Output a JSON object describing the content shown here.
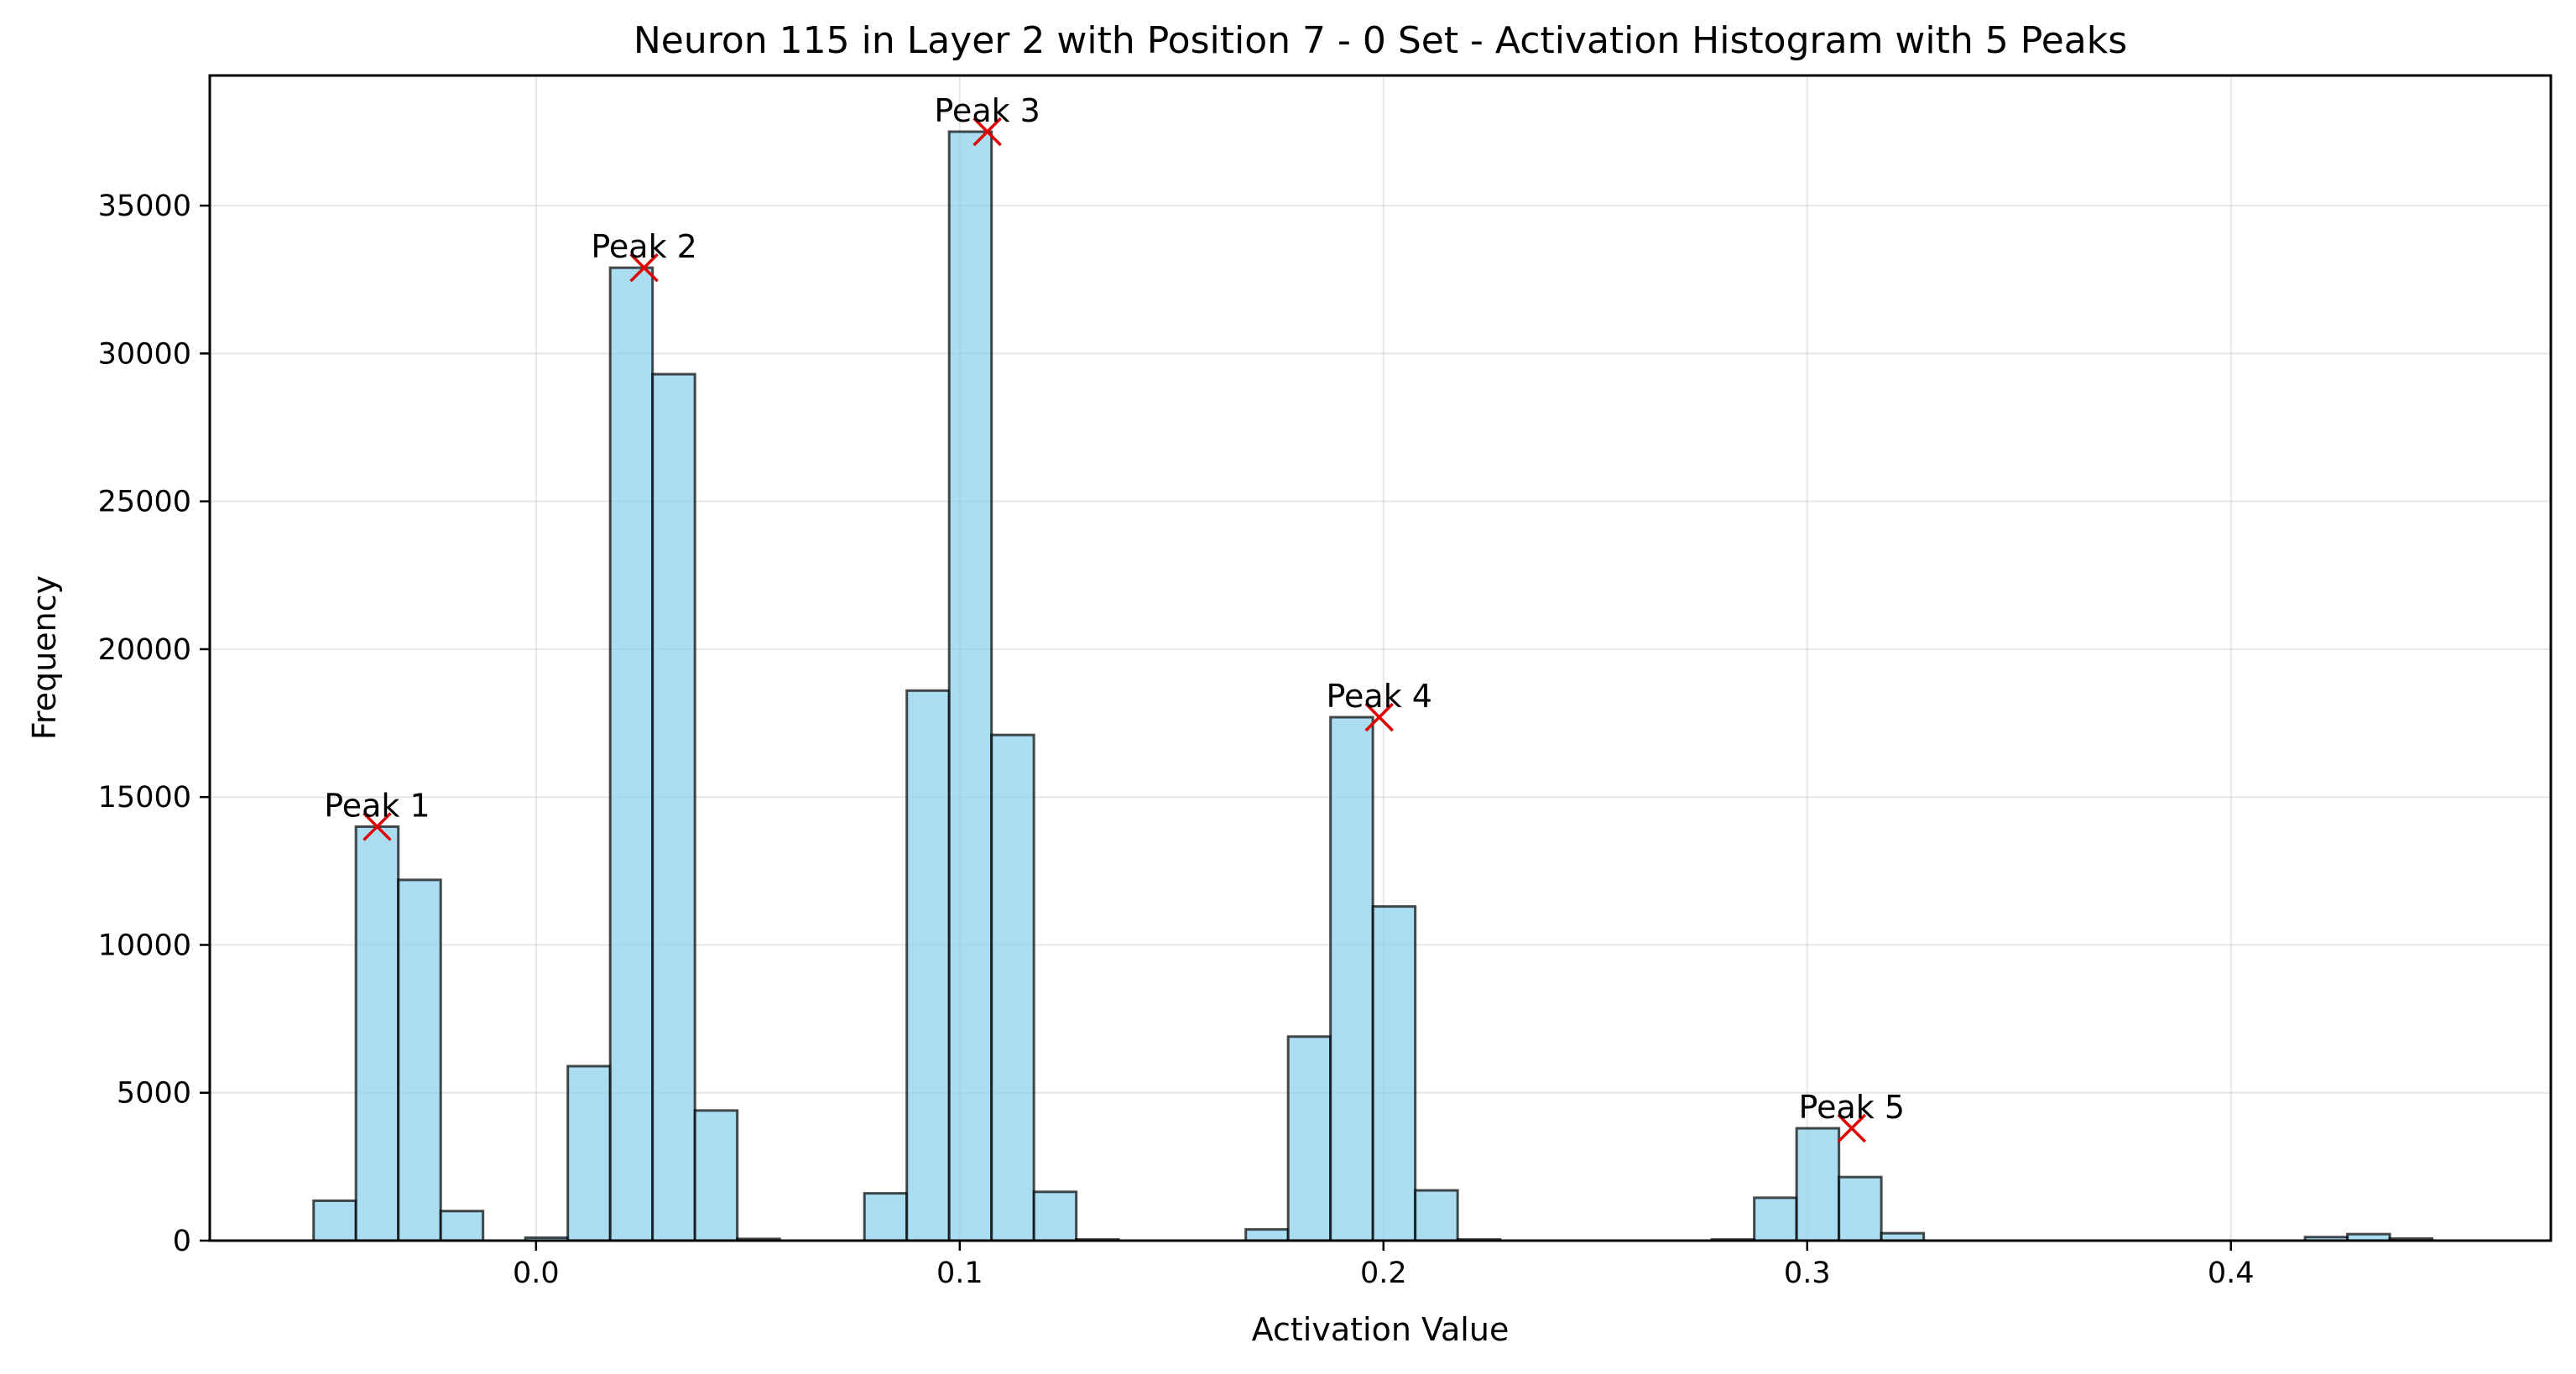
{
  "chart_data": {
    "type": "bar",
    "title": "Neuron 115 in Layer 2 with Position 7 - 0 Set - Activation Histogram with 5 Peaks",
    "xlabel": "Activation Value",
    "ylabel": "Frequency",
    "xlim": [
      -0.077,
      0.4755
    ],
    "ylim": [
      0,
      39400
    ],
    "xticks": [
      0.0,
      0.1,
      0.2,
      0.3,
      0.4
    ],
    "xtick_labels": [
      "0.0",
      "0.1",
      "0.2",
      "0.3",
      "0.4"
    ],
    "yticks": [
      0,
      5000,
      10000,
      15000,
      20000,
      25000,
      30000,
      35000
    ],
    "ytick_labels": [
      "0",
      "5000",
      "10000",
      "15000",
      "20000",
      "25000",
      "30000",
      "35000"
    ],
    "grid": true,
    "bar_color": "#87CEEB",
    "edge_color": "#000000",
    "peak_color": "#e00000",
    "bin_width": 0.01,
    "bins": [
      {
        "x0": -0.0525,
        "count": 1350
      },
      {
        "x0": -0.0425,
        "count": 14000
      },
      {
        "x0": -0.0325,
        "count": 12200
      },
      {
        "x0": -0.0225,
        "count": 1000
      },
      {
        "x0": -0.0025,
        "count": 100
      },
      {
        "x0": 0.0075,
        "count": 5900
      },
      {
        "x0": 0.0175,
        "count": 32900
      },
      {
        "x0": 0.0275,
        "count": 29300
      },
      {
        "x0": 0.0375,
        "count": 4400
      },
      {
        "x0": 0.0475,
        "count": 60
      },
      {
        "x0": 0.0775,
        "count": 1600
      },
      {
        "x0": 0.0875,
        "count": 18600
      },
      {
        "x0": 0.0975,
        "count": 37500
      },
      {
        "x0": 0.1075,
        "count": 17100
      },
      {
        "x0": 0.1175,
        "count": 1650
      },
      {
        "x0": 0.1275,
        "count": 40
      },
      {
        "x0": 0.1675,
        "count": 380
      },
      {
        "x0": 0.1775,
        "count": 6900
      },
      {
        "x0": 0.1875,
        "count": 17700
      },
      {
        "x0": 0.1975,
        "count": 11300
      },
      {
        "x0": 0.2075,
        "count": 1700
      },
      {
        "x0": 0.2175,
        "count": 40
      },
      {
        "x0": 0.2775,
        "count": 40
      },
      {
        "x0": 0.2875,
        "count": 1450
      },
      {
        "x0": 0.2975,
        "count": 3800
      },
      {
        "x0": 0.3075,
        "count": 2150
      },
      {
        "x0": 0.3175,
        "count": 250
      },
      {
        "x0": 0.4175,
        "count": 120
      },
      {
        "x0": 0.4275,
        "count": 220
      },
      {
        "x0": 0.4375,
        "count": 70
      }
    ],
    "peaks": [
      {
        "label": "Peak 1",
        "x": -0.0375,
        "y": 14000
      },
      {
        "label": "Peak 2",
        "x": 0.0255,
        "y": 32900
      },
      {
        "label": "Peak 3",
        "x": 0.1065,
        "y": 37500
      },
      {
        "label": "Peak 4",
        "x": 0.199,
        "y": 17700
      },
      {
        "label": "Peak 5",
        "x": 0.3105,
        "y": 3800
      }
    ]
  }
}
